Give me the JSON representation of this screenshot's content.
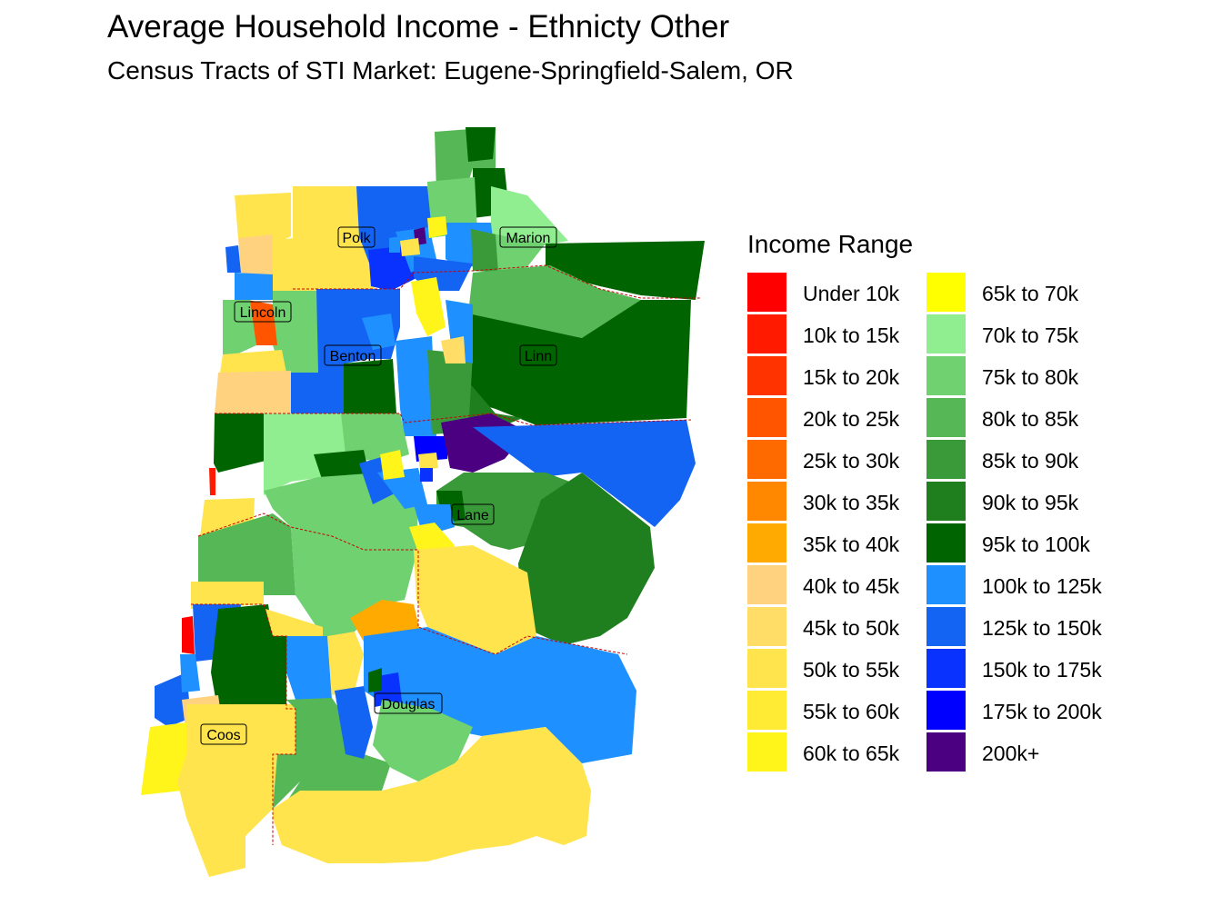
{
  "title": "Average Household Income - Ethnicty Other",
  "subtitle": "Census Tracts of STI Market: Eugene-Springfield-Salem, OR",
  "legend": {
    "title": "Income Range",
    "items": [
      {
        "label": "Under 10k",
        "color": "#FF0000"
      },
      {
        "label": "10k to 15k",
        "color": "#FF1A00"
      },
      {
        "label": "15k to 20k",
        "color": "#FF3300"
      },
      {
        "label": "20k to 25k",
        "color": "#FF5500"
      },
      {
        "label": "25k to 30k",
        "color": "#FF6A00"
      },
      {
        "label": "30k to 35k",
        "color": "#FF8800"
      },
      {
        "label": "35k to 40k",
        "color": "#FFAA00"
      },
      {
        "label": "40k to 45k",
        "color": "#FFD27F"
      },
      {
        "label": "45k to 50k",
        "color": "#FFDD66"
      },
      {
        "label": "50k to 55k",
        "color": "#FFE44D"
      },
      {
        "label": "55k to 60k",
        "color": "#FFEB33"
      },
      {
        "label": "60k to 65k",
        "color": "#FFF51A"
      },
      {
        "label": "65k to 70k",
        "color": "#FFFF00"
      },
      {
        "label": "70k to 75k",
        "color": "#90EE90"
      },
      {
        "label": "75k to 80k",
        "color": "#6FD16F"
      },
      {
        "label": "80k to 85k",
        "color": "#55B755"
      },
      {
        "label": "85k to 90k",
        "color": "#3A9A3A"
      },
      {
        "label": "90k to 95k",
        "color": "#1F7F1F"
      },
      {
        "label": "95k to 100k",
        "color": "#006400"
      },
      {
        "label": "100k to 125k",
        "color": "#1E90FF"
      },
      {
        "label": "125k to 150k",
        "color": "#1464F4"
      },
      {
        "label": "150k to 175k",
        "color": "#0A32FF"
      },
      {
        "label": "175k to 200k",
        "color": "#0000FF"
      },
      {
        "label": "200k+",
        "color": "#4B0082"
      }
    ]
  },
  "counties": [
    "Polk",
    "Marion",
    "Lincoln",
    "Benton",
    "Linn",
    "Lane",
    "Douglas",
    "Coos"
  ]
}
